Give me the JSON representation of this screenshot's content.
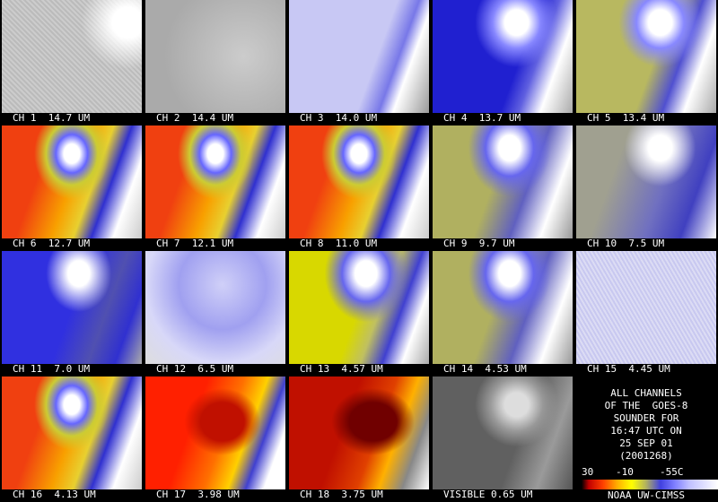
{
  "panels": [
    {
      "label": "CH 1  14.7 UM"
    },
    {
      "label": "CH 2  14.4 UM"
    },
    {
      "label": "CH 3  14.0 UM"
    },
    {
      "label": "CH 4  13.7 UM"
    },
    {
      "label": "CH 5  13.4 UM"
    },
    {
      "label": "CH 6  12.7 UM"
    },
    {
      "label": "CH 7  12.1 UM"
    },
    {
      "label": "CH 8  11.0 UM"
    },
    {
      "label": "CH 9  9.7 UM"
    },
    {
      "label": "CH 10  7.5 UM"
    },
    {
      "label": "CH 11  7.0 UM"
    },
    {
      "label": "CH 12  6.5 UM"
    },
    {
      "label": "CH 13  4.57 UM"
    },
    {
      "label": "CH 14  4.53 UM"
    },
    {
      "label": "CH 15  4.45 UM"
    },
    {
      "label": "CH 16  4.13 UM"
    },
    {
      "label": "CH 17  3.98 UM"
    },
    {
      "label": "CH 18  3.75 UM"
    },
    {
      "label": "VISIBLE 0.65 UM"
    }
  ],
  "info": {
    "lines": [
      "ALL CHANNELS",
      "OF THE  GOES-8",
      "SOUNDER FOR",
      "16:47 UTC ON",
      "25 SEP 01",
      "(2001268)"
    ],
    "scale_labels": [
      "30",
      "-10",
      "-55C"
    ],
    "credit": "NOAA UW-CIMSS"
  }
}
